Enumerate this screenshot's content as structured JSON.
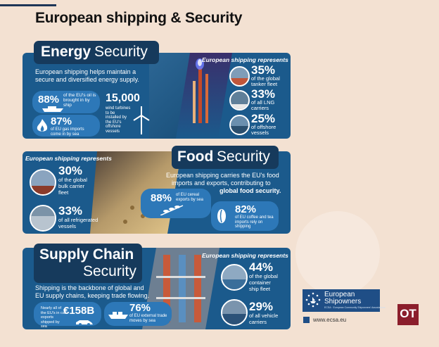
{
  "page": {
    "title": "European shipping & Security"
  },
  "energy": {
    "heading_bold": "Energy",
    "heading_light": "Security",
    "intro_line1": "European shipping helps maintain a",
    "intro_line2": "secure and diversified energy supply.",
    "stat_oil_value": "88%",
    "stat_oil_text": "of the EU's oil is brought in by ship",
    "stat_gas_value": "87%",
    "stat_gas_text": "of EU gas imports come in by sea",
    "stat_wind_value": "15,000",
    "stat_wind_text": "wind turbines to be installed by the EU's offshore vessels",
    "represents": "European shipping represents",
    "items": [
      {
        "value": "35%",
        "text1": "of the global",
        "text2": "tanker fleet",
        "icon": "tanker-icon"
      },
      {
        "value": "33%",
        "text1": "of all LNG",
        "text2": "carriers",
        "icon": "lng-carrier-icon"
      },
      {
        "value": "25%",
        "text1": "of offshore",
        "text2": "vessels",
        "icon": "offshore-vessel-icon"
      }
    ]
  },
  "food": {
    "heading_bold": "Food",
    "heading_light": "Security",
    "intro_line1": "European shipping carries the EU's food",
    "intro_line2": "imports and exports, contributing to",
    "intro_line3": "global food security.",
    "represents": "European shipping represents",
    "items": [
      {
        "value": "30%",
        "text1": "of the global",
        "text2": "bulk carrier",
        "text3": "fleet"
      },
      {
        "value": "33%",
        "text1": "of all refrigerated",
        "text2": "vessels",
        "text3": ""
      }
    ],
    "stat_cereal_value": "88%",
    "stat_cereal_text": "of EU cereal exports by sea",
    "stat_coffee_value": "82%",
    "stat_coffee_text": "of EU coffee and tea imports rely on shipping"
  },
  "supply": {
    "heading_line1": "Supply Chain",
    "heading_line2": "Security",
    "intro_line1": "Shipping is the backbone of global and",
    "intro_line2": "EU supply chains, keeping trade flowing.",
    "stat_car_value": "€158B",
    "stat_car_text": "Nearly all of the EU's in car exports shipped by sea",
    "stat_trade_value": "76%",
    "stat_trade_text": "of EU external trade moves by sea",
    "represents": "European shipping represents",
    "items": [
      {
        "value": "44%",
        "text1": "of the global",
        "text2": "container",
        "text3": "ship fleet"
      },
      {
        "value": "29%",
        "text1": "of all vehicle",
        "text2": "carriers",
        "text3": ""
      }
    ]
  },
  "logo": {
    "line1": "European",
    "line2": "Shipowners",
    "tagline": "ECSA · European Community Shipowners' Associations",
    "website": "www.ecsa.eu"
  },
  "badge": {
    "text": "OT"
  },
  "colors": {
    "panel": "#1b5a8c",
    "heading": "#163a5c",
    "pill": "#2d78b8",
    "badge": "#8b1e2c",
    "background": "#f3e1d2"
  }
}
